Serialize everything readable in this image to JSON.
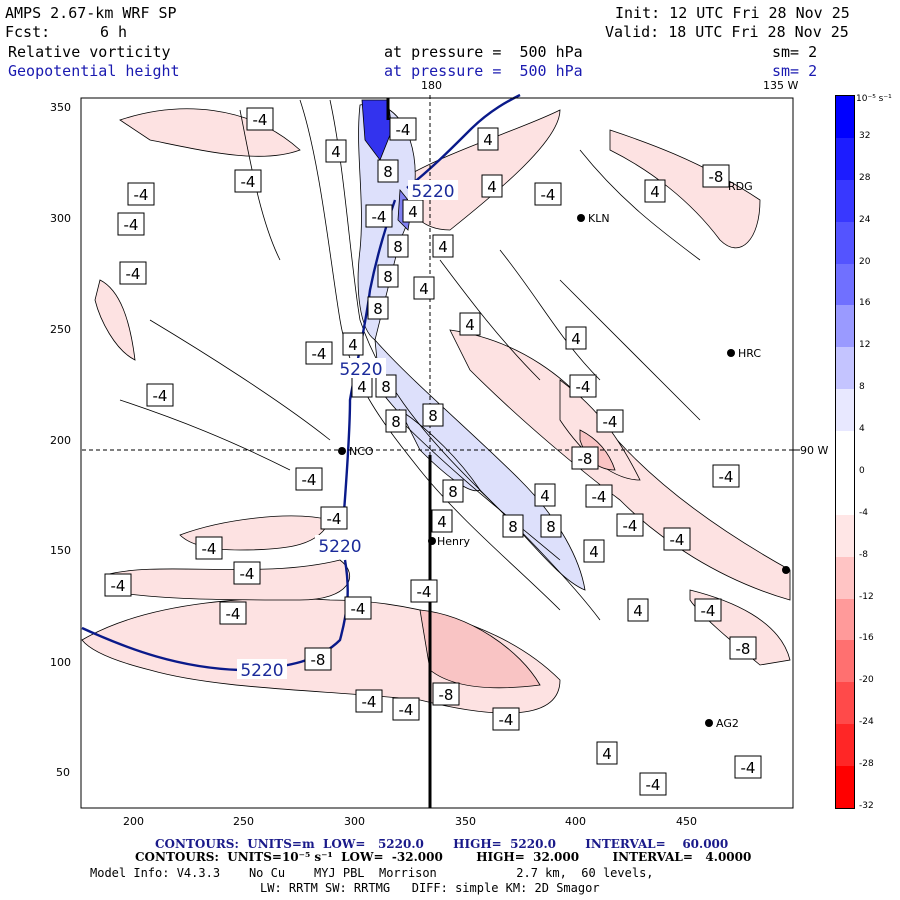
{
  "header": {
    "model": "AMPS 2.67-km WRF SP",
    "fcst_label": "Fcst:",
    "fcst_value": "6 h",
    "init": "Init: 12 UTC Fri 28 Nov 25",
    "valid": "Valid: 18 UTC Fri 28 Nov 25",
    "field1": "Relative vorticity",
    "field2": "Geopotential height",
    "pressure1": "at pressure =  500 hPa",
    "pressure2": "at pressure =  500 hPa",
    "sm1": "sm= 2",
    "sm2": "sm= 2"
  },
  "map": {
    "meridian_180": "180",
    "meridian_135w": "135 W",
    "meridian_90w": "90 W",
    "x_ticks": [
      "200",
      "250",
      "300",
      "350",
      "400",
      "450"
    ],
    "y_ticks": [
      "350",
      "300",
      "250",
      "200",
      "150",
      "100",
      "50"
    ],
    "stations": [
      "KLN",
      "HRC",
      "NCO",
      "Henry",
      "AG2",
      "RDG"
    ],
    "height_contour_label": "5220",
    "vort_labels": [
      "-4",
      "4",
      "8",
      "-8"
    ]
  },
  "colorbar": {
    "units": "10⁻⁵ s⁻¹",
    "labels": [
      "32",
      "28",
      "24",
      "20",
      "16",
      "12",
      "8",
      "4",
      "0",
      "-4",
      "-8",
      "-12",
      "-16",
      "-20",
      "-24",
      "-28",
      "-32"
    ],
    "colors": [
      "#0000ff",
      "#1c1cff",
      "#3838ff",
      "#5454ff",
      "#7070ff",
      "#9a9aff",
      "#c4c4ff",
      "#e8e8ff",
      "#ffffff",
      "#ffffff",
      "#ffe6e6",
      "#ffc4c4",
      "#ff9a9a",
      "#ff7070",
      "#ff4a4a",
      "#ff2626",
      "#ff0000"
    ]
  },
  "footer": {
    "line1": "CONTOURS:  UNITS=m  LOW=   5220.0       HIGH=  5220.0       INTERVAL=    60.000",
    "line2": "CONTOURS:  UNITS=10⁻⁵ s⁻¹  LOW=  -32.000        HIGH=  32.000        INTERVAL=   4.0000",
    "line3": "Model Info: V4.3.3    No Cu    MYJ PBL  Morrison           2.7 km,  60 levels,",
    "line4": "LW: RRTM SW: RRTMG   DIFF: simple KM: 2D Smagor"
  }
}
